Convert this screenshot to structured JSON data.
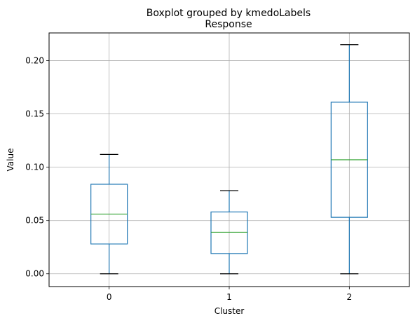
{
  "chart_data": {
    "type": "box",
    "suptitle": "Boxplot grouped by kmedoLabels",
    "title": "Response",
    "xlabel": "Cluster",
    "ylabel": "Value",
    "ylim": [
      -0.012,
      0.226
    ],
    "yticks": [
      "0.00",
      "0.05",
      "0.10",
      "0.15",
      "0.20"
    ],
    "ytick_values": [
      0.0,
      0.05,
      0.1,
      0.15,
      0.2
    ],
    "categories": [
      "0",
      "1",
      "2"
    ],
    "grid": true,
    "boxes": [
      {
        "category": "0",
        "whisker_low": 0.0,
        "q1": 0.028,
        "median": 0.056,
        "q3": 0.084,
        "whisker_high": 0.112
      },
      {
        "category": "1",
        "whisker_low": 0.0,
        "q1": 0.019,
        "median": 0.039,
        "q3": 0.058,
        "whisker_high": 0.078
      },
      {
        "category": "2",
        "whisker_low": 0.0,
        "q1": 0.053,
        "median": 0.107,
        "q3": 0.161,
        "whisker_high": 0.215
      }
    ],
    "colors": {
      "box": "#1f77b4",
      "median": "#2ca02c",
      "cap": "#000000",
      "grid": "#b0b0b0"
    }
  }
}
